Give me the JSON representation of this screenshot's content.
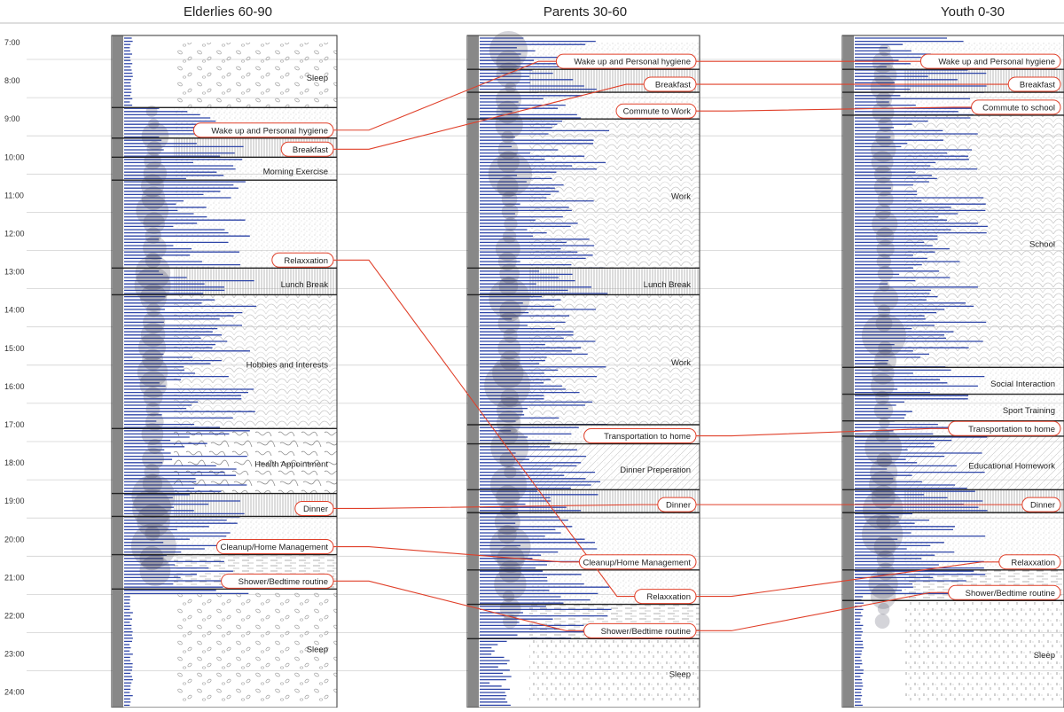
{
  "time_labels": [
    "7:00",
    "8:00",
    "9:00",
    "10:00",
    "11:00",
    "12:00",
    "13:00",
    "14:00",
    "15:00",
    "16:00",
    "17:00",
    "18:00",
    "19:00",
    "20:00",
    "21:00",
    "22:00",
    "23:00",
    "24:00"
  ],
  "groups": [
    {
      "id": "elderly",
      "title": "Elderlies 60-90",
      "activities": [
        {
          "label": "Sleep",
          "start": 7.0,
          "end": 8.7,
          "pattern": "dots",
          "boxed": false
        },
        {
          "label": "Wake up and Personal hygiene",
          "start": 8.7,
          "end": 9.5,
          "pattern": "fine",
          "boxed": true
        },
        {
          "label": "Breakfast",
          "start": 9.5,
          "end": 10.0,
          "pattern": "vlines",
          "boxed": true
        },
        {
          "label": "Morning Exercise",
          "start": 10.0,
          "end": 10.6,
          "pattern": "fine",
          "boxed": false
        },
        {
          "label": "Relaxxation",
          "start": 10.6,
          "end": 12.9,
          "pattern": "fine",
          "boxed": true
        },
        {
          "label": "Lunch Break",
          "start": 12.9,
          "end": 13.6,
          "pattern": "vlines",
          "boxed": false
        },
        {
          "label": "Hobbies and Interests",
          "start": 13.6,
          "end": 17.1,
          "pattern": "scales",
          "boxed": false
        },
        {
          "label": "Health Appointment",
          "start": 17.1,
          "end": 18.8,
          "pattern": "squiggle",
          "boxed": false
        },
        {
          "label": "Dinner",
          "start": 18.8,
          "end": 19.4,
          "pattern": "vlines",
          "boxed": true
        },
        {
          "label": "Cleanup/Home Management",
          "start": 19.4,
          "end": 20.4,
          "pattern": "fine",
          "boxed": true
        },
        {
          "label": "Shower/Bedtime routine",
          "start": 20.4,
          "end": 21.3,
          "pattern": "dashes",
          "boxed": true
        },
        {
          "label": "Sleep",
          "start": 21.3,
          "end": 24.3,
          "pattern": "dots",
          "boxed": false
        }
      ]
    },
    {
      "id": "parents",
      "title": "Parents 30-60",
      "activities": [
        {
          "label": "Wake up and Personal hygiene",
          "start": 7.0,
          "end": 7.7,
          "pattern": "fine",
          "boxed": true
        },
        {
          "label": "Breakfast",
          "start": 7.7,
          "end": 8.3,
          "pattern": "vlines",
          "boxed": true
        },
        {
          "label": "Commute to Work",
          "start": 8.3,
          "end": 9.0,
          "pattern": "fine",
          "boxed": true
        },
        {
          "label": "Work",
          "start": 9.0,
          "end": 12.9,
          "pattern": "scales",
          "boxed": false
        },
        {
          "label": "Lunch Break",
          "start": 12.9,
          "end": 13.6,
          "pattern": "vlines",
          "boxed": false
        },
        {
          "label": "Work",
          "start": 13.6,
          "end": 17.0,
          "pattern": "scales",
          "boxed": false
        },
        {
          "label": "Transportation to home",
          "start": 17.0,
          "end": 17.5,
          "pattern": "fine",
          "boxed": true
        },
        {
          "label": "Dinner Preperation",
          "start": 17.5,
          "end": 18.7,
          "pattern": "hatch",
          "boxed": false
        },
        {
          "label": "Dinner",
          "start": 18.7,
          "end": 19.3,
          "pattern": "vlines",
          "boxed": true
        },
        {
          "label": "Cleanup/Home Management",
          "start": 19.3,
          "end": 20.8,
          "pattern": "fine",
          "boxed": true
        },
        {
          "label": "Relaxxation",
          "start": 20.8,
          "end": 21.7,
          "pattern": "fine",
          "boxed": true
        },
        {
          "label": "Shower/Bedtime routine",
          "start": 21.7,
          "end": 22.6,
          "pattern": "dashes",
          "boxed": true
        },
        {
          "label": "Sleep",
          "start": 22.6,
          "end": 24.3,
          "pattern": "speckle",
          "boxed": false
        }
      ]
    },
    {
      "id": "youth",
      "title": "Youth 0-30",
      "activities": [
        {
          "label": "Wake up and Personal hygiene",
          "start": 7.0,
          "end": 7.7,
          "pattern": "fine",
          "boxed": true
        },
        {
          "label": "Breakfast",
          "start": 7.7,
          "end": 8.3,
          "pattern": "vlines",
          "boxed": true
        },
        {
          "label": "Commute to school",
          "start": 8.3,
          "end": 8.9,
          "pattern": "fine",
          "boxed": true
        },
        {
          "label": "School",
          "start": 8.9,
          "end": 15.5,
          "pattern": "scales",
          "boxed": false
        },
        {
          "label": "Social Interaction",
          "start": 15.5,
          "end": 16.2,
          "pattern": "fine",
          "boxed": false
        },
        {
          "label": "Sport Training",
          "start": 16.2,
          "end": 16.9,
          "pattern": "fine",
          "boxed": false
        },
        {
          "label": "Transportation to home",
          "start": 16.9,
          "end": 17.3,
          "pattern": "fine",
          "boxed": true
        },
        {
          "label": "Educational Homework",
          "start": 17.3,
          "end": 18.7,
          "pattern": "hatch",
          "boxed": false
        },
        {
          "label": "Dinner",
          "start": 18.7,
          "end": 19.3,
          "pattern": "vlines",
          "boxed": true
        },
        {
          "label": "Relaxxation",
          "start": 19.3,
          "end": 20.8,
          "pattern": "fine",
          "boxed": true
        },
        {
          "label": "Shower/Bedtime routine",
          "start": 20.8,
          "end": 21.6,
          "pattern": "dashes",
          "boxed": true
        },
        {
          "label": "Sleep",
          "start": 21.6,
          "end": 24.3,
          "pattern": "speckle",
          "boxed": false
        }
      ]
    }
  ],
  "connectors": [
    {
      "activity": "Wake up and Personal hygiene",
      "from": "elderly",
      "to": "parents"
    },
    {
      "activity": "Wake up and Personal hygiene",
      "from": "parents",
      "to": "youth"
    },
    {
      "activity": "Breakfast",
      "from": "elderly",
      "to": "parents"
    },
    {
      "activity": "Breakfast",
      "from": "parents",
      "to": "youth"
    },
    {
      "activity": "Commute to Work",
      "from": "parents",
      "to": "youth",
      "to_label": "Commute to school"
    },
    {
      "activity": "Relaxxation",
      "from": "elderly",
      "to": "parents"
    },
    {
      "activity": "Relaxxation",
      "from": "parents",
      "to": "youth"
    },
    {
      "activity": "Transportation to home",
      "from": "parents",
      "to": "youth"
    },
    {
      "activity": "Dinner",
      "from": "elderly",
      "to": "parents"
    },
    {
      "activity": "Dinner",
      "from": "parents",
      "to": "youth"
    },
    {
      "activity": "Cleanup/Home Management",
      "from": "elderly",
      "to": "parents"
    },
    {
      "activity": "Shower/Bedtime routine",
      "from": "elderly",
      "to": "parents"
    },
    {
      "activity": "Shower/Bedtime routine",
      "from": "parents",
      "to": "youth"
    }
  ],
  "colors": {
    "connector": "#e0402a",
    "bar": "#2f46a8",
    "axis_bar": "#888888",
    "bubble": "#3a3d52",
    "grid": "#bdbdbd",
    "border": "#333333"
  }
}
